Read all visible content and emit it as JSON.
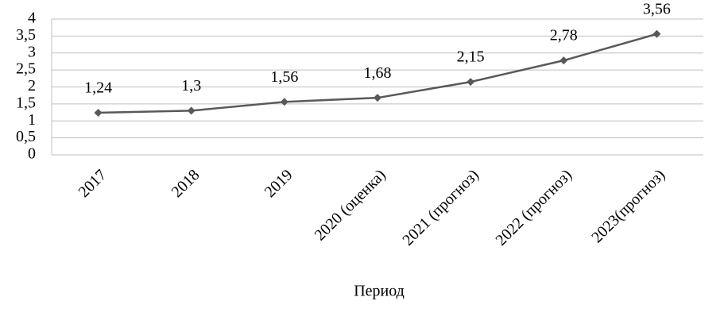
{
  "chart_data": {
    "type": "line",
    "categories": [
      "2017",
      "2018",
      "2019",
      "2020 (оценка)",
      "2021 (прогноз)",
      "2022 (прогноз)",
      "2023(прогноз)"
    ],
    "values": [
      1.24,
      1.3,
      1.56,
      1.68,
      2.15,
      2.78,
      3.56
    ],
    "value_labels": [
      "1,24",
      "1,3",
      "1,56",
      "1,68",
      "2,15",
      "2,78",
      "3,56"
    ],
    "color": "#595959",
    "x_label": "Период",
    "ylim": [
      0,
      4
    ],
    "yticks": [
      0,
      {
        "value": 0.5,
        "label": "0,5"
      },
      1,
      {
        "value": 1.5,
        "label": "1,5"
      },
      2,
      {
        "value": 2.5,
        "label": "2,5"
      },
      3,
      {
        "value": 3.5,
        "label": "3,5"
      },
      4
    ],
    "grid": true
  }
}
